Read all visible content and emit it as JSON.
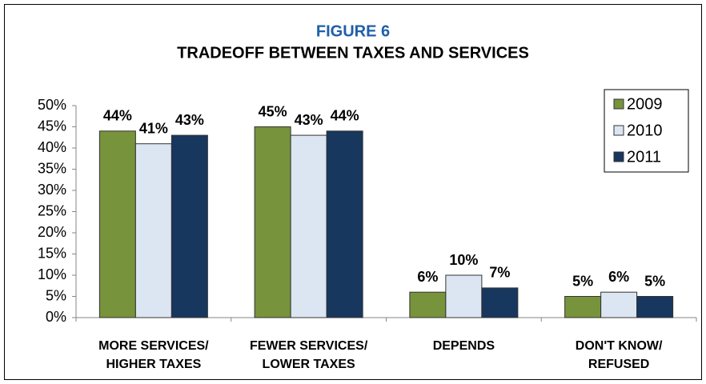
{
  "chart_data": {
    "type": "bar",
    "title": "FIGURE 6",
    "subtitle": "TRADEOFF BETWEEN TAXES AND SERVICES",
    "categories": [
      [
        "MORE SERVICES/",
        "HIGHER TAXES"
      ],
      [
        "FEWER SERVICES/",
        "LOWER TAXES"
      ],
      [
        "DEPENDS"
      ],
      [
        "DON'T KNOW/",
        "REFUSED"
      ]
    ],
    "series": [
      {
        "name": "2009",
        "color": "#77933c",
        "values": [
          44,
          45,
          6,
          5
        ],
        "value_labels": [
          "44%",
          "45%",
          "6%",
          "5%"
        ]
      },
      {
        "name": "2010",
        "color": "#dce6f2",
        "values": [
          41,
          43,
          10,
          6
        ],
        "value_labels": [
          "41%",
          "43%",
          "10%",
          "6%"
        ]
      },
      {
        "name": "2011",
        "color": "#17375e",
        "values": [
          43,
          44,
          7,
          5
        ],
        "value_labels": [
          "43%",
          "44%",
          "7%",
          "5%"
        ]
      }
    ],
    "ylim": [
      0,
      50
    ],
    "yticks": [
      {
        "value": 0,
        "label": "0%"
      },
      {
        "value": 5,
        "label": "5%"
      },
      {
        "value": 10,
        "label": "10%"
      },
      {
        "value": 15,
        "label": "15%"
      },
      {
        "value": 20,
        "label": "20%"
      },
      {
        "value": 25,
        "label": "25%"
      },
      {
        "value": 30,
        "label": "30%"
      },
      {
        "value": 35,
        "label": "35%"
      },
      {
        "value": 40,
        "label": "40%"
      },
      {
        "value": 45,
        "label": "45%"
      },
      {
        "value": 50,
        "label": "50%"
      }
    ],
    "legend": "top-right",
    "grid": false
  }
}
